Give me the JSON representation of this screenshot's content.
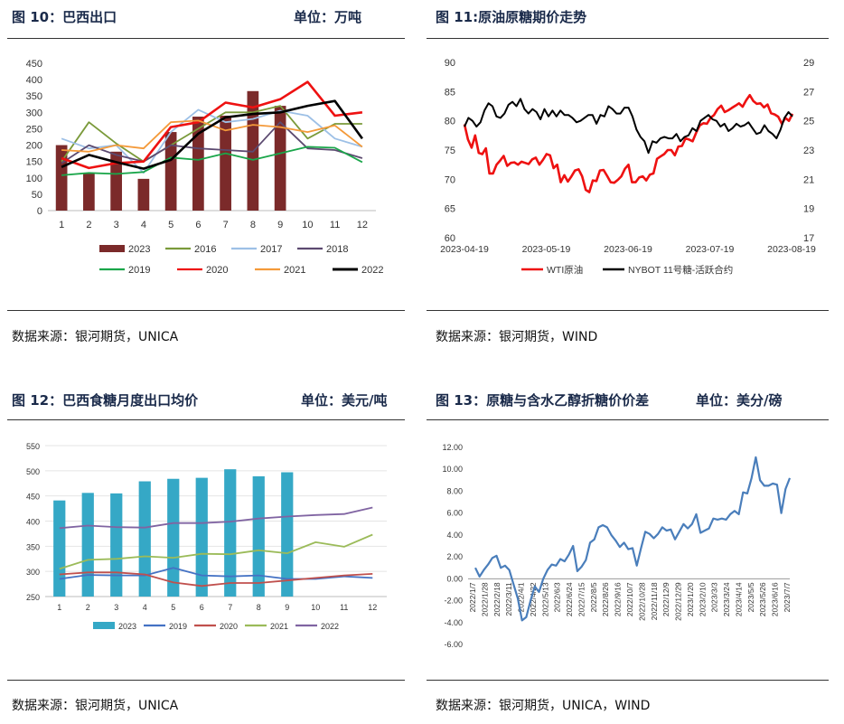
{
  "panels": [
    {
      "title": "图 10：巴西出口",
      "unit": "单位：万吨",
      "source": "数据来源：银河期货，UNICA"
    },
    {
      "title": "图 11:原油原糖期价走势",
      "unit": "",
      "source": "数据来源：银河期货，WIND"
    },
    {
      "title": "图 12：巴西食糖月度出口均价",
      "unit": "单位：美元/吨",
      "source": "数据来源：银河期货，UNICA"
    },
    {
      "title": "图 13：原糖与含水乙醇折糖价价差",
      "unit": "单位：美分/磅",
      "source": "数据来源：银河期货，UNICA，WIND"
    }
  ],
  "chart_data": [
    {
      "type": "bar",
      "categories": [
        "1",
        "2",
        "3",
        "4",
        "5",
        "6",
        "7",
        "8",
        "9",
        "10",
        "11",
        "12"
      ],
      "ylim": [
        0,
        450
      ],
      "yticks": [
        "0",
        "50",
        "100",
        "150",
        "200",
        "250",
        "300",
        "350",
        "400",
        "450"
      ],
      "bar_series": {
        "name": "2023",
        "color": "#7b2a2a",
        "values": [
          200,
          113,
          180,
          97,
          240,
          287,
          290,
          365,
          320,
          null,
          null,
          null
        ]
      },
      "series": [
        {
          "name": "2016",
          "color": "#7a9a3a",
          "values": [
            150,
            270,
            205,
            150,
            200,
            250,
            300,
            300,
            320,
            220,
            265,
            265
          ]
        },
        {
          "name": "2017",
          "color": "#9dc0e6",
          "values": [
            220,
            190,
            200,
            115,
            240,
            308,
            270,
            280,
            305,
            290,
            220,
            195
          ]
        },
        {
          "name": "2018",
          "color": "#5c4a70",
          "values": [
            145,
            200,
            170,
            150,
            200,
            190,
            185,
            180,
            270,
            190,
            185,
            160
          ]
        },
        {
          "name": "2019",
          "color": "#1aa64a",
          "values": [
            108,
            115,
            112,
            118,
            162,
            155,
            175,
            155,
            175,
            195,
            192,
            148
          ]
        },
        {
          "name": "2020",
          "color": "#ee1111",
          "values": [
            160,
            130,
            145,
            150,
            255,
            270,
            330,
            315,
            340,
            393,
            290,
            300
          ]
        },
        {
          "name": "2021",
          "color": "#f49a3a",
          "values": [
            185,
            180,
            200,
            190,
            270,
            275,
            245,
            262,
            255,
            240,
            260,
            195
          ]
        },
        {
          "name": "2022",
          "color": "#000000",
          "values": [
            133,
            170,
            148,
            128,
            155,
            235,
            285,
            295,
            300,
            320,
            335,
            220
          ]
        }
      ]
    },
    {
      "type": "line",
      "x_ticks": [
        "2023-04-19",
        "2023-05-19",
        "2023-06-19",
        "2023-07-19",
        "2023-08-19"
      ],
      "y_left": {
        "ylim": [
          60,
          90
        ],
        "ticks": [
          "60",
          "65",
          "70",
          "75",
          "80",
          "85",
          "90"
        ]
      },
      "y_right": {
        "ylim": [
          17,
          29
        ],
        "ticks": [
          "17",
          "19",
          "21",
          "23",
          "25",
          "27",
          "29"
        ]
      },
      "series": [
        {
          "name": "WTI原油",
          "axis": "left",
          "color": "#ee1111",
          "values": [
            79.4,
            76.8,
            75.4,
            77.5,
            74.5,
            74.3,
            75.3,
            71.0,
            71.0,
            72.5,
            73.2,
            74.0,
            72.3,
            72.8,
            72.9,
            72.5,
            73.0,
            72.8,
            72.6,
            73.4,
            73.7,
            72.5,
            73.3,
            74.3,
            74.1,
            71.9,
            72.5,
            69.5,
            70.7,
            69.6,
            70.5,
            71.5,
            71.7,
            70.5,
            68.2,
            67.8,
            69.8,
            69.7,
            71.5,
            71.6,
            70.6,
            69.5,
            69.4,
            69.9,
            70.5,
            71.8,
            72.5,
            69.5,
            69.5,
            70.3,
            70.5,
            69.8,
            70.8,
            71.0,
            73.5,
            73.9,
            74.3,
            75.0,
            75.0,
            74.1,
            75.6,
            75.7,
            77.0,
            76.8,
            76.5,
            78.0,
            79.2,
            79.6,
            79.5,
            80.5,
            81.0,
            82.0,
            82.6,
            81.5,
            81.8,
            82.2,
            82.6,
            83.0,
            82.4,
            83.5,
            84.4,
            83.4,
            82.9,
            83.0,
            82.3,
            82.8,
            81.3,
            81.1,
            80.7,
            79.5,
            80.5,
            80.0,
            81.2
          ]
        },
        {
          "name": "NYBOT 11号糖-活跃合约",
          "axis": "right",
          "color": "#000000",
          "values": [
            24.6,
            25.2,
            25.0,
            24.6,
            24.9,
            25.7,
            26.2,
            26.0,
            25.3,
            25.2,
            25.5,
            26.1,
            26.3,
            26.0,
            26.5,
            25.8,
            25.5,
            25.8,
            25.6,
            25.1,
            25.8,
            25.3,
            25.7,
            25.3,
            25.7,
            25.4,
            25.4,
            25.2,
            24.9,
            25.0,
            25.2,
            25.4,
            25.4,
            24.8,
            25.4,
            25.3,
            26.0,
            25.8,
            25.5,
            25.5,
            25.9,
            25.9,
            25.3,
            24.4,
            23.9,
            23.6,
            22.8,
            23.6,
            23.5,
            23.8,
            23.9,
            23.8,
            23.8,
            24.1,
            23.6,
            23.9,
            24.0,
            24.5,
            24.3,
            25.0,
            25.2,
            25.4,
            25.1,
            25.0,
            24.6,
            24.8,
            24.3,
            24.5,
            24.8,
            24.6,
            24.7,
            24.9,
            24.5,
            24.1,
            24.2,
            24.7,
            24.3,
            24.1,
            23.8,
            24.4,
            25.2,
            25.6,
            25.3
          ]
        }
      ]
    },
    {
      "type": "bar",
      "categories": [
        "1",
        "2",
        "3",
        "4",
        "5",
        "6",
        "7",
        "8",
        "9",
        "10",
        "11",
        "12"
      ],
      "ylim": [
        250,
        550
      ],
      "yticks": [
        "250",
        "300",
        "350",
        "400",
        "450",
        "500",
        "550"
      ],
      "bar_series": {
        "name": "2023",
        "color": "#35a8c6",
        "values": [
          441,
          456,
          455,
          479,
          484,
          486,
          503,
          489,
          497,
          null,
          null,
          null
        ]
      },
      "series": [
        {
          "name": "2019",
          "color": "#4472c4",
          "values": [
            285,
            293,
            292,
            292,
            307,
            292,
            290,
            292,
            285,
            285,
            290,
            287
          ]
        },
        {
          "name": "2020",
          "color": "#c0504d",
          "values": [
            294,
            298,
            298,
            294,
            278,
            271,
            277,
            277,
            282,
            287,
            292,
            295
          ]
        },
        {
          "name": "2021",
          "color": "#9bbb59",
          "values": [
            305,
            323,
            325,
            330,
            327,
            335,
            334,
            342,
            336,
            358,
            349,
            373
          ]
        },
        {
          "name": "2022",
          "color": "#8064a2",
          "values": [
            386,
            391,
            388,
            387,
            396,
            396,
            399,
            405,
            409,
            412,
            414,
            427
          ]
        }
      ]
    },
    {
      "type": "line",
      "x_ticks": [
        "2022/1/7",
        "2022/1/28",
        "2022/2/18",
        "2022/3/11",
        "2022/4/1",
        "2022/4/22",
        "2022/5/13",
        "2022/6/3",
        "2022/6/24",
        "2022/7/15",
        "2022/8/5",
        "2022/8/26",
        "2022/9/16",
        "2022/10/7",
        "2022/10/28",
        "2022/11/18",
        "2022/12/9",
        "2022/12/29",
        "2023/1/20",
        "2023/2/10",
        "2023/3/3",
        "2023/3/24",
        "2023/4/14",
        "2023/5/5",
        "2023/5/26",
        "2023/6/16",
        "2023/7/7"
      ],
      "ylim": [
        -6,
        12
      ],
      "yticks": [
        "-6.00",
        "-4.00",
        "-2.00",
        "0.00",
        "2.00",
        "4.00",
        "6.00",
        "8.00",
        "10.00",
        "12.00"
      ],
      "series": [
        {
          "name": "价差",
          "color": "#4a7ebb",
          "values": [
            1.0,
            0.2,
            0.8,
            1.3,
            1.9,
            2.1,
            1.0,
            1.2,
            0.8,
            -0.5,
            -1.8,
            -3.8,
            -3.5,
            -2.0,
            -0.7,
            -1.2,
            0.0,
            0.8,
            1.3,
            1.2,
            1.8,
            1.6,
            2.2,
            3.0,
            0.7,
            1.1,
            1.7,
            3.3,
            3.6,
            4.7,
            4.9,
            4.7,
            4.0,
            3.5,
            2.9,
            3.3,
            2.7,
            2.8,
            1.2,
            2.8,
            4.3,
            4.1,
            3.7,
            4.1,
            4.7,
            4.4,
            4.5,
            3.6,
            4.3,
            5.0,
            4.6,
            5.0,
            5.9,
            4.2,
            4.4,
            4.6,
            5.5,
            5.4,
            5.5,
            5.4,
            5.9,
            6.2,
            5.9,
            7.9,
            7.8,
            9.2,
            11.1,
            9.0,
            8.5,
            8.5,
            8.7,
            8.6,
            6.0,
            8.2,
            9.2
          ]
        }
      ]
    }
  ]
}
